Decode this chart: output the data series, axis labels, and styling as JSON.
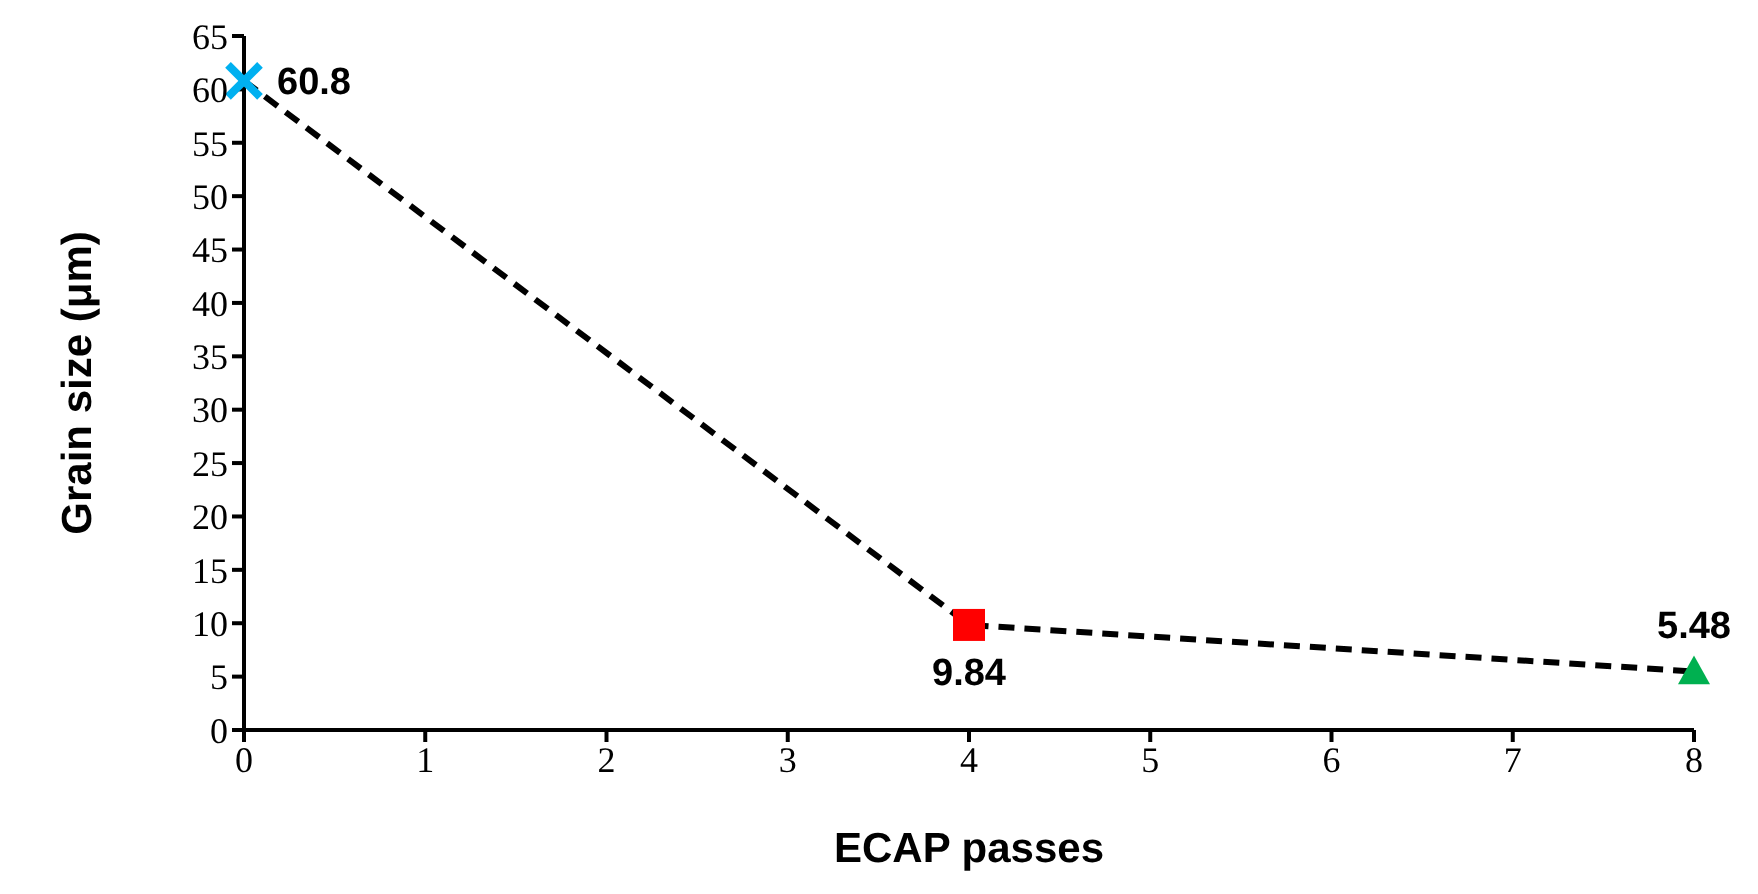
{
  "chart_data": {
    "type": "line",
    "xlabel": "ECAP passes",
    "ylabel": "Grain size (μm)",
    "xlim": [
      0,
      8
    ],
    "xticks": [
      0,
      1,
      2,
      3,
      4,
      5,
      6,
      7,
      8
    ],
    "ylim": [
      0,
      65
    ],
    "yticks": [
      0,
      5,
      10,
      15,
      20,
      25,
      30,
      35,
      40,
      45,
      50,
      55,
      60,
      65
    ],
    "grid": false,
    "legend": false,
    "series": [
      {
        "x": [
          0,
          4,
          8
        ],
        "values": [
          60.8,
          9.84,
          5.48
        ],
        "color": "#000000",
        "line_style": "dashed",
        "marker": "none"
      },
      {
        "type": "scatter",
        "x": [
          0
        ],
        "values": [
          60.8
        ],
        "color": "#00b0f0",
        "marker": "cross",
        "value_labels": [
          "60.8"
        ]
      },
      {
        "type": "scatter",
        "x": [
          4
        ],
        "values": [
          9.84
        ],
        "color": "#ff0000",
        "marker": "square",
        "value_labels": [
          "9.84"
        ]
      },
      {
        "type": "scatter",
        "x": [
          8
        ],
        "values": [
          5.48
        ],
        "color": "#00b050",
        "marker": "triangle",
        "value_labels": [
          "5.48"
        ]
      }
    ]
  }
}
